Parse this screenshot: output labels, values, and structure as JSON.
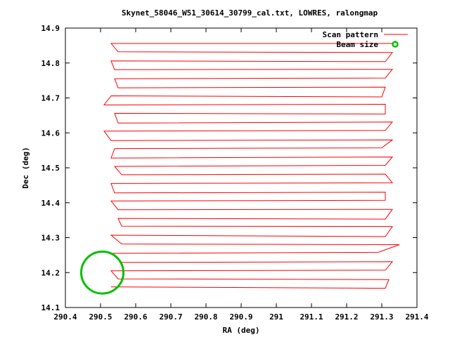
{
  "chart_data": {
    "type": "scatter",
    "title": "Skynet_58046_W51_30614_30799_cal.txt, LOWRES, ralongmap",
    "xlabel": "RA (deg)",
    "ylabel": "Dec (deg)",
    "xlim": [
      290.4,
      291.4
    ],
    "ylim": [
      14.1,
      14.9
    ],
    "xticks": [
      "290.4",
      "290.5",
      "290.6",
      "290.7",
      "290.8",
      "290.9",
      "291",
      "291.1",
      "291.2",
      "291.3",
      "291.4"
    ],
    "yticks": [
      "14.1",
      "14.2",
      "14.3",
      "14.4",
      "14.5",
      "14.6",
      "14.7",
      "14.8",
      "14.9"
    ],
    "grid": false,
    "legend_position": "top-right",
    "colors": {
      "scan": "#ff0000",
      "beam": "#00c000"
    },
    "series": [
      {
        "name": "Scan pattern",
        "scan_rows_dec": [
          14.155,
          14.18,
          14.205,
          14.23,
          14.255,
          14.28,
          14.305,
          14.33,
          14.355,
          14.38,
          14.405,
          14.43,
          14.455,
          14.48,
          14.505,
          14.53,
          14.555,
          14.58,
          14.605,
          14.63,
          14.655,
          14.68,
          14.705,
          14.73,
          14.755,
          14.78,
          14.805,
          14.83,
          14.855
        ],
        "ra_start": 290.53,
        "ra_end": 291.33,
        "points": [
          [
            290.53,
            14.159
          ],
          [
            291.31,
            14.155
          ],
          [
            291.32,
            14.18
          ],
          [
            290.55,
            14.182
          ],
          [
            290.53,
            14.205
          ],
          [
            291.31,
            14.207
          ],
          [
            291.33,
            14.231
          ],
          [
            290.56,
            14.229
          ],
          [
            290.53,
            14.255
          ],
          [
            291.29,
            14.258
          ],
          [
            291.35,
            14.28
          ],
          [
            290.56,
            14.282
          ],
          [
            290.53,
            14.307
          ],
          [
            291.31,
            14.303
          ],
          [
            291.33,
            14.332
          ],
          [
            290.56,
            14.333
          ],
          [
            290.55,
            14.355
          ],
          [
            291.31,
            14.353
          ],
          [
            291.33,
            14.381
          ],
          [
            290.55,
            14.38
          ],
          [
            290.53,
            14.405
          ],
          [
            291.31,
            14.407
          ],
          [
            291.31,
            14.43
          ],
          [
            290.54,
            14.428
          ],
          [
            290.53,
            14.455
          ],
          [
            291.33,
            14.457
          ],
          [
            291.31,
            14.482
          ],
          [
            290.56,
            14.48
          ],
          [
            290.54,
            14.504
          ],
          [
            291.31,
            14.507
          ],
          [
            291.33,
            14.531
          ],
          [
            290.53,
            14.528
          ],
          [
            290.54,
            14.555
          ],
          [
            291.3,
            14.557
          ],
          [
            291.33,
            14.58
          ],
          [
            290.53,
            14.578
          ],
          [
            290.51,
            14.605
          ],
          [
            291.31,
            14.607
          ],
          [
            291.33,
            14.631
          ],
          [
            290.55,
            14.628
          ],
          [
            290.54,
            14.656
          ],
          [
            291.31,
            14.654
          ],
          [
            291.31,
            14.682
          ],
          [
            290.51,
            14.68
          ],
          [
            290.53,
            14.706
          ],
          [
            291.3,
            14.703
          ],
          [
            291.31,
            14.731
          ],
          [
            290.55,
            14.729
          ],
          [
            290.54,
            14.755
          ],
          [
            291.31,
            14.757
          ],
          [
            291.33,
            14.782
          ],
          [
            290.54,
            14.781
          ],
          [
            290.53,
            14.806
          ],
          [
            291.31,
            14.804
          ],
          [
            291.33,
            14.83
          ],
          [
            290.55,
            14.832
          ],
          [
            290.53,
            14.856
          ],
          [
            291.33,
            14.856
          ]
        ]
      },
      {
        "name": "Beam size",
        "center": [
          290.505,
          14.2
        ],
        "radius_deg": 0.06
      }
    ]
  }
}
